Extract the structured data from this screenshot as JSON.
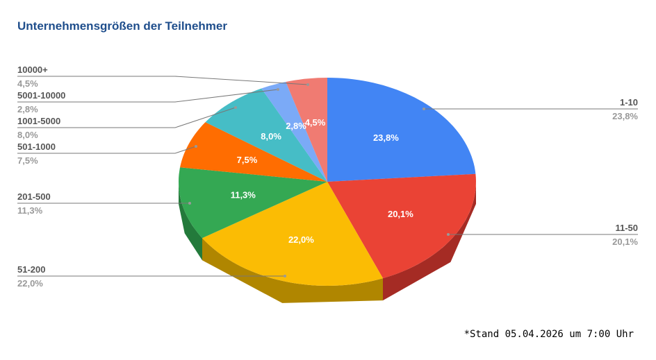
{
  "chart_data": {
    "type": "pie",
    "style": "3d",
    "title": "Unternehmensgrößen der Teilnehmer",
    "footnote": "*Stand 05.04.2026 um 7:00 Uhr",
    "slices": [
      {
        "label": "1-10",
        "value": 23.8,
        "display": "23,8%",
        "color": "#4285f4",
        "side_color": "#2f5fb0"
      },
      {
        "label": "11-50",
        "value": 20.1,
        "display": "20,1%",
        "color": "#ea4335",
        "side_color": "#a52b24"
      },
      {
        "label": "51-200",
        "value": 22.0,
        "display": "22,0%",
        "color": "#fbbc04",
        "side_color": "#b08600"
      },
      {
        "label": "201-500",
        "value": 11.3,
        "display": "11,3%",
        "color": "#34a853",
        "side_color": "#237a3b"
      },
      {
        "label": "501-1000",
        "value": 7.5,
        "display": "7,5%",
        "color": "#ff6d01",
        "side_color": "#b34d00"
      },
      {
        "label": "1001-5000",
        "value": 8.0,
        "display": "8,0%",
        "color": "#46bdc6",
        "side_color": "#31858b"
      },
      {
        "label": "5001-10000",
        "value": 2.8,
        "display": "2,8%",
        "color": "#7baaf7",
        "side_color": "#5677ad"
      },
      {
        "label": "10000+",
        "value": 4.5,
        "display": "4,5%",
        "color": "#f07b72",
        "side_color": "#a85650"
      }
    ],
    "legend": "leader-line labels"
  }
}
